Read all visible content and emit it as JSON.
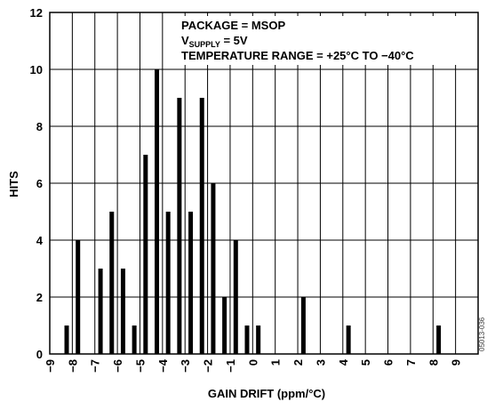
{
  "chart_data": {
    "type": "bar",
    "xlabel": "GAIN DRIFT (ppm/°C)",
    "ylabel": "HITS",
    "xlim": [
      -9,
      10
    ],
    "ylim": [
      0,
      12
    ],
    "x_ticks": [
      "-9",
      "-8",
      "-7",
      "-6",
      "-5",
      "-4",
      "-3",
      "-2",
      "-1",
      "0",
      "1",
      "2",
      "3",
      "4",
      "5",
      "6",
      "7",
      "8",
      "9"
    ],
    "y_ticks": [
      "0",
      "2",
      "4",
      "6",
      "8",
      "10",
      "12"
    ],
    "grid": true,
    "annotation": {
      "line1": "PACKAGE = MSOP",
      "line2_main": "V",
      "line2_sub": "SUPPLY",
      "line2_rest": " = 5V",
      "line3": "TEMPERATURE RANGE = +25°C TO −40°C"
    },
    "figure_id": "05013-036",
    "bars": [
      {
        "x": -8.25,
        "value": 1
      },
      {
        "x": -7.75,
        "value": 4
      },
      {
        "x": -6.75,
        "value": 3
      },
      {
        "x": -6.25,
        "value": 5
      },
      {
        "x": -5.75,
        "value": 3
      },
      {
        "x": -5.25,
        "value": 1
      },
      {
        "x": -4.75,
        "value": 7
      },
      {
        "x": -4.25,
        "value": 10
      },
      {
        "x": -3.75,
        "value": 5
      },
      {
        "x": -3.25,
        "value": 9
      },
      {
        "x": -2.75,
        "value": 5
      },
      {
        "x": -2.25,
        "value": 9
      },
      {
        "x": -1.75,
        "value": 6
      },
      {
        "x": -1.25,
        "value": 2
      },
      {
        "x": -0.75,
        "value": 4
      },
      {
        "x": -0.25,
        "value": 1
      },
      {
        "x": 0.25,
        "value": 1
      },
      {
        "x": 2.25,
        "value": 2
      },
      {
        "x": 4.25,
        "value": 1
      },
      {
        "x": 8.25,
        "value": 1
      }
    ]
  }
}
